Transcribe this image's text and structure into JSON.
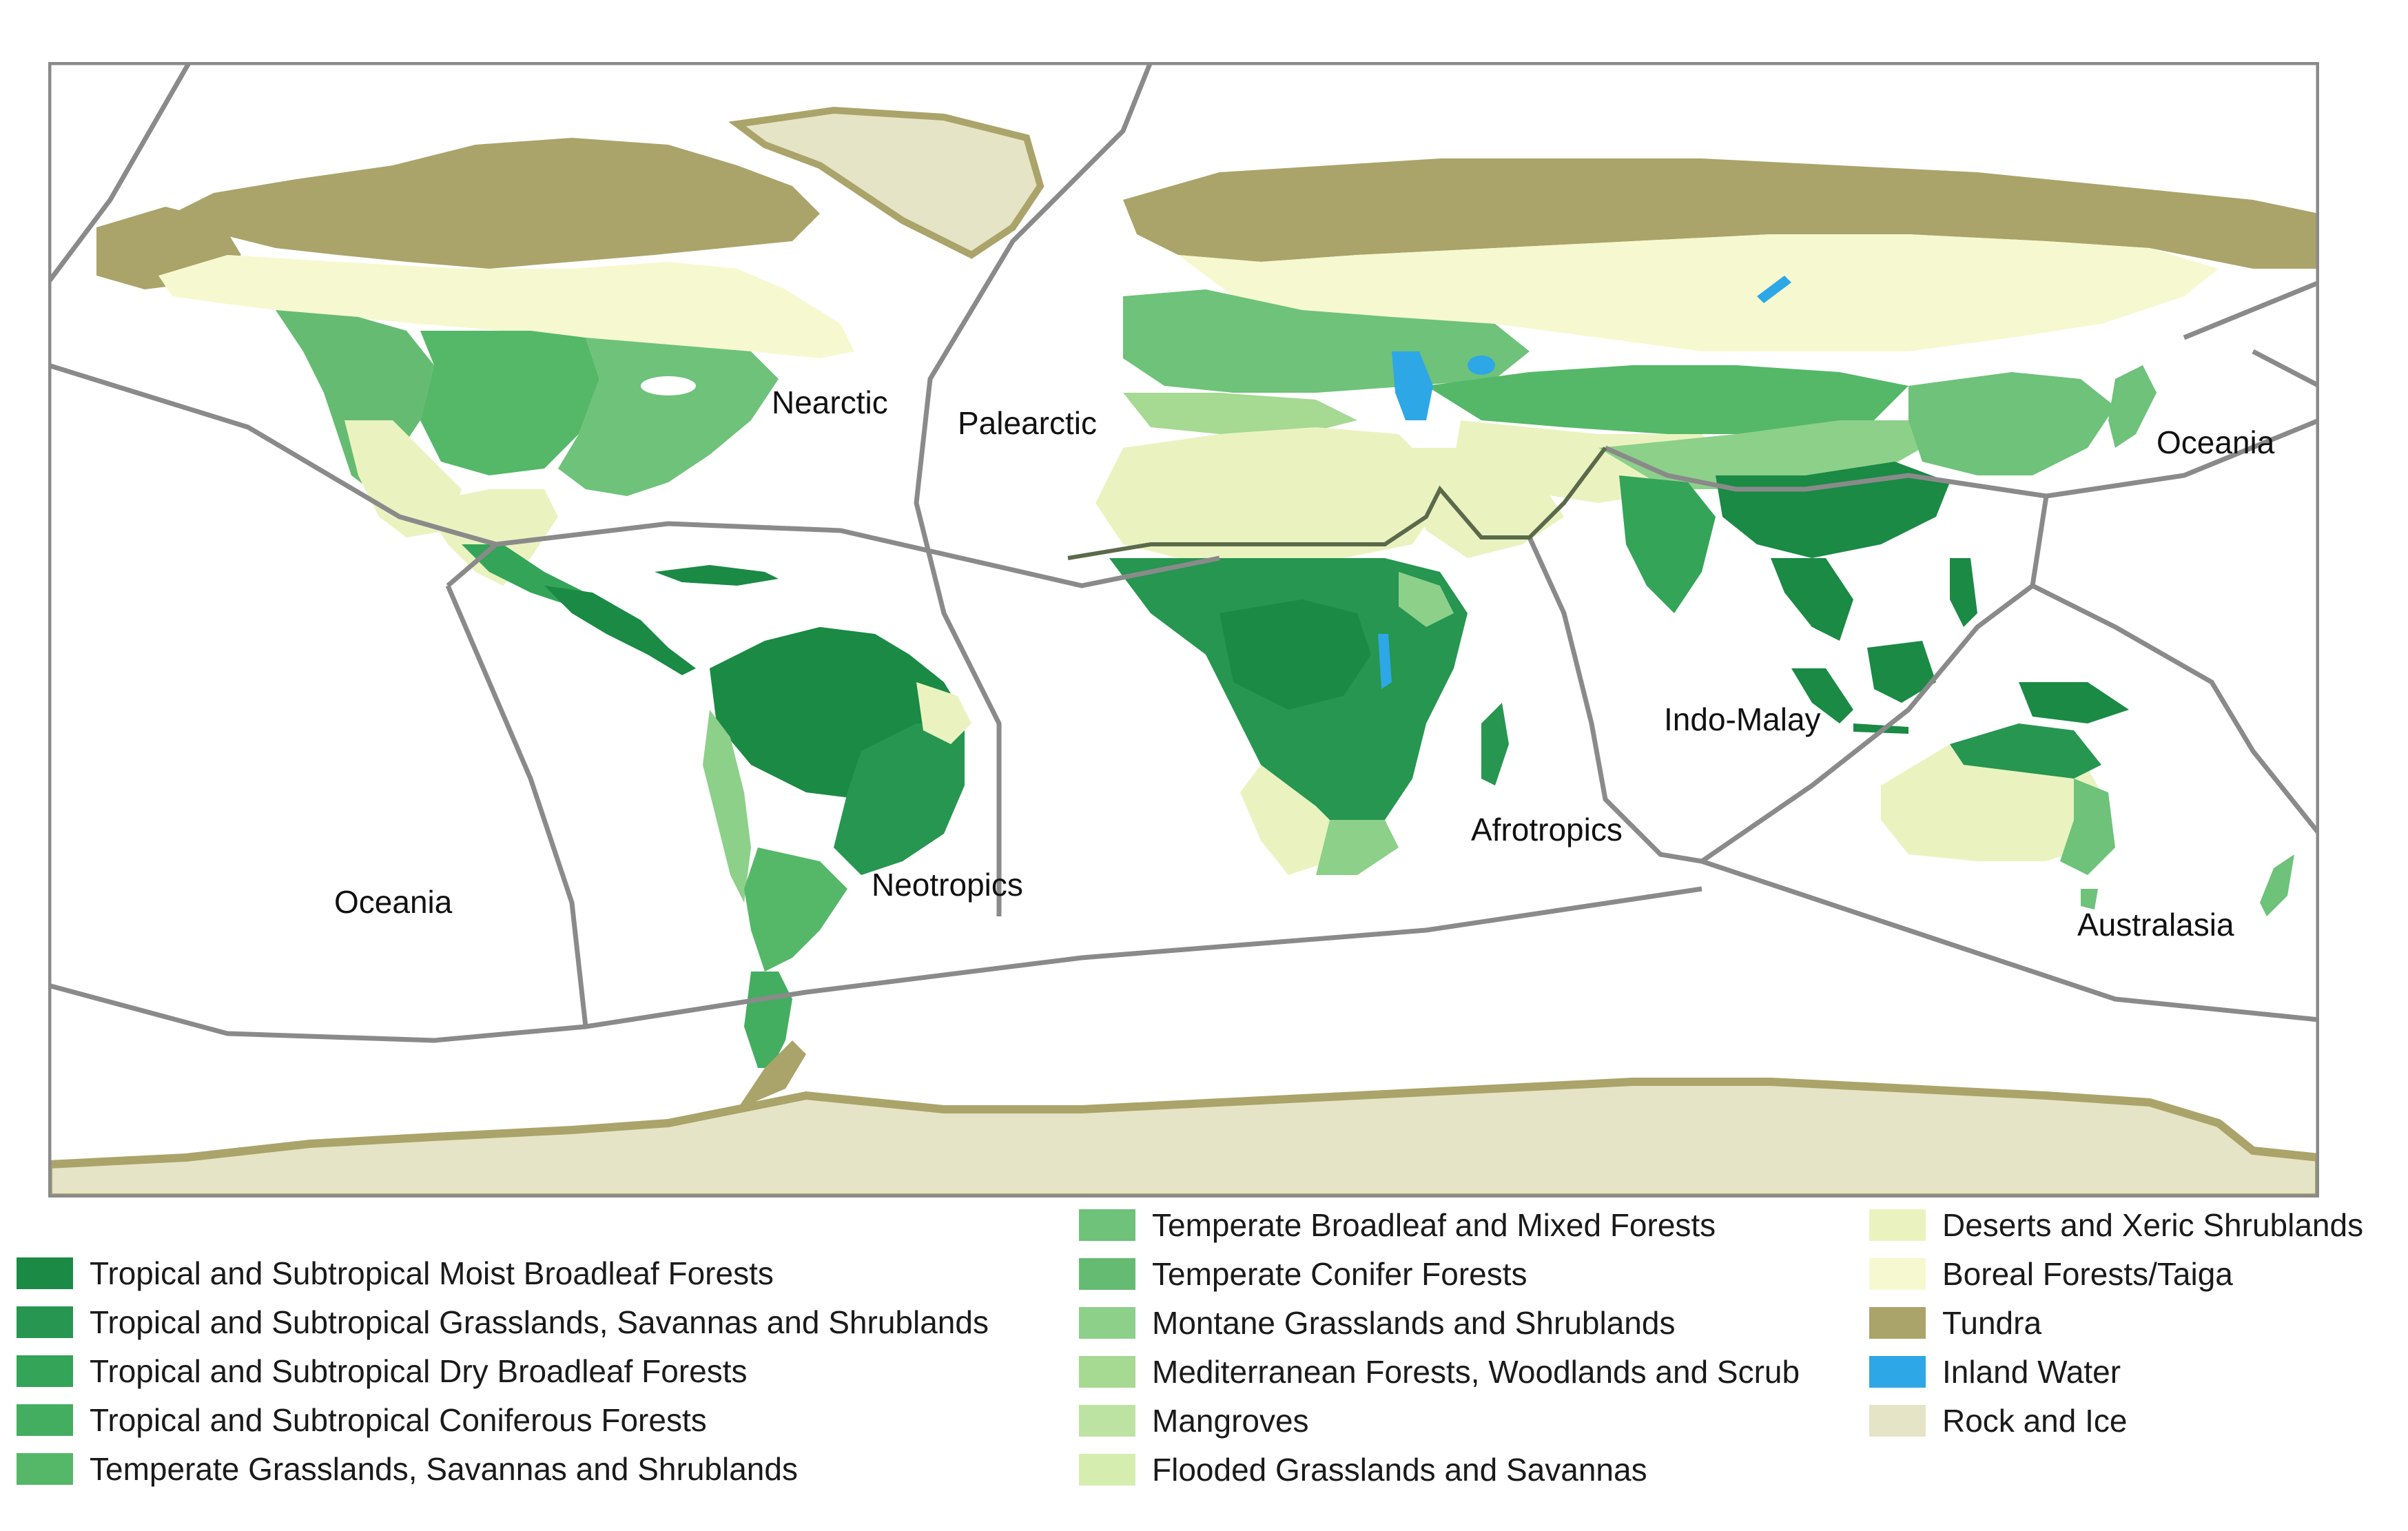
{
  "realm_labels": {
    "nearctic": "Nearctic",
    "palearctic": "Palearctic",
    "oceania_east": "Oceania",
    "oceania_west": "Oceania",
    "neotropics": "Neotropics",
    "afrotropics": "Afrotropics",
    "indo_malay": "Indo-Malay",
    "australasia": "Australasia"
  },
  "colors": {
    "frame": "#8a8a8a",
    "boundary": "#8a8a8a",
    "ocean": "#ffffff",
    "tropical_moist": "#1a8a45",
    "tropical_grass": "#269650",
    "tropical_dry": "#34a458",
    "tropical_conifer": "#43ae60",
    "temperate_grass": "#54b868",
    "temperate_broadleaf": "#6ec27a",
    "temperate_conifer": "#66bb72",
    "montane": "#8dd08a",
    "mediterranean": "#a6d992",
    "mangroves": "#bde3a2",
    "flooded": "#d6edb0",
    "deserts": "#eaf3c0",
    "boreal": "#f6f8cf",
    "tundra": "#aaa46a",
    "inland_water": "#2ea7e6",
    "rock_ice": "#e6e4c6"
  },
  "legend": {
    "col1": [
      {
        "label": "Tropical and Subtropical Moist Broadleaf Forests",
        "color": "#1a8a45"
      },
      {
        "label": "Tropical and Subtropical Grasslands, Savannas and Shrublands",
        "color": "#269650"
      },
      {
        "label": "Tropical and Subtropical Dry Broadleaf Forests",
        "color": "#34a458"
      },
      {
        "label": "Tropical and Subtropical Coniferous Forests",
        "color": "#43ae60"
      },
      {
        "label": "Temperate Grasslands, Savannas and Shrublands",
        "color": "#54b868"
      }
    ],
    "col2": [
      {
        "label": "Temperate Broadleaf and Mixed Forests",
        "color": "#6ec27a"
      },
      {
        "label": "Temperate Conifer Forests",
        "color": "#66bb72"
      },
      {
        "label": "Montane Grasslands and Shrublands",
        "color": "#8dd08a"
      },
      {
        "label": "Mediterranean Forests, Woodlands and Scrub",
        "color": "#a6d992"
      },
      {
        "label": "Mangroves",
        "color": "#bde3a2"
      },
      {
        "label": "Flooded Grasslands and Savannas",
        "color": "#d6edb0"
      }
    ],
    "col3": [
      {
        "label": "Deserts and Xeric Shrublands",
        "color": "#eaf3c0"
      },
      {
        "label": "Boreal Forests/Taiga",
        "color": "#f6f8cf"
      },
      {
        "label": "Tundra",
        "color": "#aaa46a"
      },
      {
        "label": "Inland Water",
        "color": "#2ea7e6"
      },
      {
        "label": "Rock and Ice",
        "color": "#e6e4c6"
      }
    ]
  }
}
